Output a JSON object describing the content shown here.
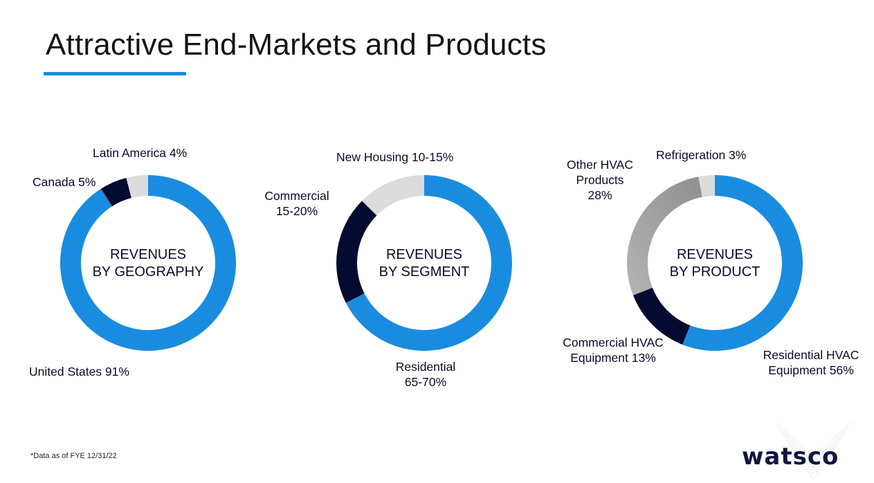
{
  "title": "Attractive End-Markets and Products",
  "colors": {
    "accent": "#1a8ce0",
    "navy": "#050a30",
    "light_gray": "#dcdcdc",
    "gray": "#a9a9a9"
  },
  "chart_data": [
    {
      "type": "pie",
      "center_label": [
        "REVENUES",
        "BY GEOGRAPHY"
      ],
      "categories": [
        "United States",
        "Canada",
        "Latin America"
      ],
      "values": [
        91,
        5,
        4
      ],
      "labels": [
        "United States 91%",
        "Canada  5%",
        "Latin America 4%"
      ],
      "colors": [
        "#1a8ce0",
        "#050a30",
        "#dcdcdc"
      ]
    },
    {
      "type": "pie",
      "center_label": [
        "REVENUES",
        "BY SEGMENT"
      ],
      "categories": [
        "Residential",
        "Commercial",
        "New Housing"
      ],
      "values": [
        67.5,
        20,
        12.5
      ],
      "labels": [
        [
          "Residential",
          "65-70%"
        ],
        [
          "Commercial",
          "15-20%"
        ],
        [
          "New Housing 10-15%"
        ]
      ],
      "colors": [
        "#1a8ce0",
        "#050a30",
        "#dcdcdc"
      ]
    },
    {
      "type": "pie",
      "center_label": [
        "REVENUES",
        "BY PRODUCT"
      ],
      "categories": [
        "Residential HVAC Equipment",
        "Commercial HVAC Equipment",
        "Other HVAC Products",
        "Refrigeration"
      ],
      "values": [
        56,
        13,
        28,
        3
      ],
      "labels": [
        [
          "Residential HVAC",
          "Equipment 56%"
        ],
        [
          "Commercial HVAC",
          "Equipment 13%"
        ],
        [
          "Other HVAC",
          "Products",
          "28%"
        ],
        [
          "Refrigeration 3%"
        ]
      ],
      "colors": [
        "#1a8ce0",
        "#050a30",
        "#a9a9a9",
        "#dcdcdc"
      ]
    }
  ],
  "footnote": "*Data as of FYE 12/31/22",
  "logo_text": "watsco"
}
